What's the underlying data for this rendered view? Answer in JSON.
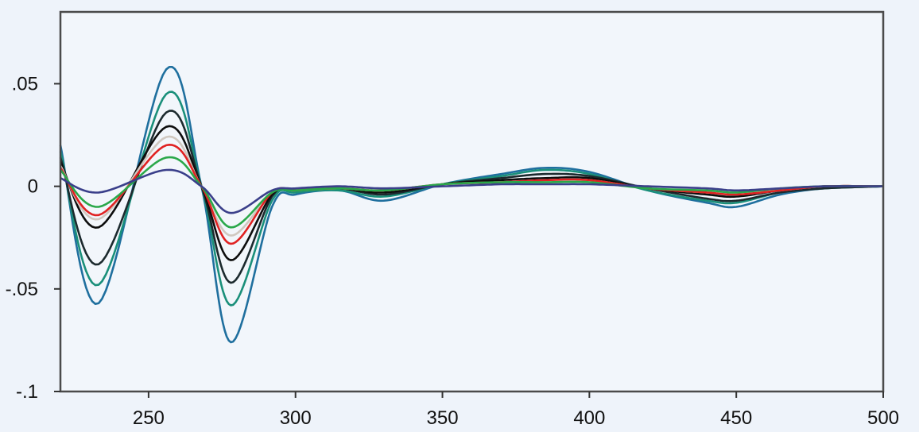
{
  "chart_data": {
    "type": "line",
    "title": "",
    "xlabel": "",
    "ylabel": "",
    "xlim": [
      220,
      500
    ],
    "ylim": [
      -0.1,
      0.085
    ],
    "grid": false,
    "legend": "none",
    "x_ticks": [
      {
        "value": 250,
        "label": "250"
      },
      {
        "value": 300,
        "label": "300"
      },
      {
        "value": 350,
        "label": "350"
      },
      {
        "value": 400,
        "label": "400"
      },
      {
        "value": 450,
        "label": "450"
      },
      {
        "value": 500,
        "label": "500"
      }
    ],
    "y_ticks": [
      {
        "value": 0.05,
        "label": ".05"
      },
      {
        "value": 0,
        "label": "0"
      },
      {
        "value": -0.05,
        "label": "-.05"
      },
      {
        "value": -0.1,
        "label": "-.1"
      }
    ],
    "series": [
      {
        "color": "#1f6f9e",
        "x": [
          220,
          233,
          256,
          268,
          278,
          292,
          300,
          315,
          330,
          350,
          370,
          385,
          400,
          420,
          440,
          450,
          465,
          480,
          500
        ],
        "y": [
          0.02,
          -0.057,
          0.057,
          0.0,
          -0.076,
          -0.01,
          -0.004,
          -0.002,
          -0.007,
          0.001,
          0.006,
          0.009,
          0.007,
          -0.002,
          -0.008,
          -0.01,
          -0.004,
          -0.001,
          0.0
        ]
      },
      {
        "color": "#1a8f7a",
        "x": [
          220,
          233,
          256,
          268,
          278,
          292,
          300,
          315,
          330,
          350,
          370,
          385,
          400,
          420,
          440,
          450,
          465,
          480,
          500
        ],
        "y": [
          0.017,
          -0.048,
          0.045,
          0.0,
          -0.058,
          -0.007,
          -0.003,
          -0.002,
          -0.005,
          0.001,
          0.005,
          0.008,
          0.006,
          -0.002,
          -0.007,
          -0.008,
          -0.003,
          -0.001,
          0.0
        ]
      },
      {
        "color": "#1c2a2e",
        "x": [
          220,
          233,
          256,
          268,
          278,
          292,
          300,
          315,
          330,
          350,
          370,
          385,
          400,
          420,
          440,
          450,
          465,
          480,
          500
        ],
        "y": [
          0.014,
          -0.038,
          0.036,
          0.0,
          -0.047,
          -0.005,
          -0.002,
          -0.001,
          -0.004,
          0.001,
          0.004,
          0.006,
          0.005,
          -0.001,
          -0.006,
          -0.007,
          -0.003,
          -0.001,
          0.0
        ]
      },
      {
        "color": "#0d0d0d",
        "x": [
          220,
          233,
          256,
          268,
          278,
          292,
          300,
          315,
          330,
          350,
          370,
          385,
          400,
          420,
          440,
          450,
          465,
          480,
          500
        ],
        "y": [
          0.012,
          -0.02,
          0.029,
          0.0,
          -0.036,
          -0.004,
          -0.002,
          -0.001,
          -0.003,
          0.001,
          0.003,
          0.004,
          0.004,
          -0.001,
          -0.004,
          -0.005,
          -0.002,
          0.0,
          0.0
        ]
      },
      {
        "color": "#d0c8c0",
        "x": [
          220,
          233,
          256,
          268,
          278,
          292,
          300,
          315,
          330,
          350,
          370,
          385,
          400,
          420,
          440,
          450,
          465,
          480,
          500
        ],
        "y": [
          0.01,
          -0.016,
          0.024,
          0.0,
          -0.024,
          -0.003,
          -0.002,
          -0.001,
          -0.002,
          0.001,
          0.002,
          0.003,
          0.003,
          -0.001,
          -0.003,
          -0.004,
          -0.002,
          0.0,
          0.0
        ]
      },
      {
        "color": "#e02222",
        "x": [
          220,
          233,
          256,
          268,
          278,
          292,
          300,
          315,
          330,
          350,
          370,
          385,
          400,
          420,
          440,
          450,
          465,
          480,
          500
        ],
        "y": [
          0.009,
          -0.014,
          0.02,
          0.0,
          -0.028,
          -0.003,
          -0.002,
          -0.001,
          -0.002,
          0.001,
          0.002,
          0.003,
          0.003,
          -0.001,
          -0.003,
          -0.004,
          -0.002,
          0.0,
          0.0
        ]
      },
      {
        "color": "#2aa84a",
        "x": [
          220,
          233,
          256,
          268,
          278,
          292,
          300,
          315,
          330,
          350,
          370,
          385,
          400,
          420,
          440,
          450,
          465,
          480,
          500
        ],
        "y": [
          0.008,
          -0.01,
          0.014,
          0.0,
          -0.02,
          -0.003,
          -0.002,
          -0.001,
          -0.002,
          0.001,
          0.002,
          0.002,
          0.002,
          -0.001,
          -0.002,
          -0.003,
          -0.001,
          0.0,
          0.0
        ]
      },
      {
        "color": "#3a3f8a",
        "x": [
          220,
          233,
          256,
          268,
          278,
          292,
          300,
          315,
          330,
          350,
          370,
          385,
          400,
          420,
          440,
          450,
          465,
          480,
          500
        ],
        "y": [
          0.004,
          -0.003,
          0.008,
          0.0,
          -0.013,
          -0.002,
          -0.001,
          0.0,
          -0.001,
          0.0,
          0.001,
          0.001,
          0.001,
          0.0,
          -0.001,
          -0.002,
          -0.001,
          0.0,
          0.0
        ]
      }
    ]
  }
}
